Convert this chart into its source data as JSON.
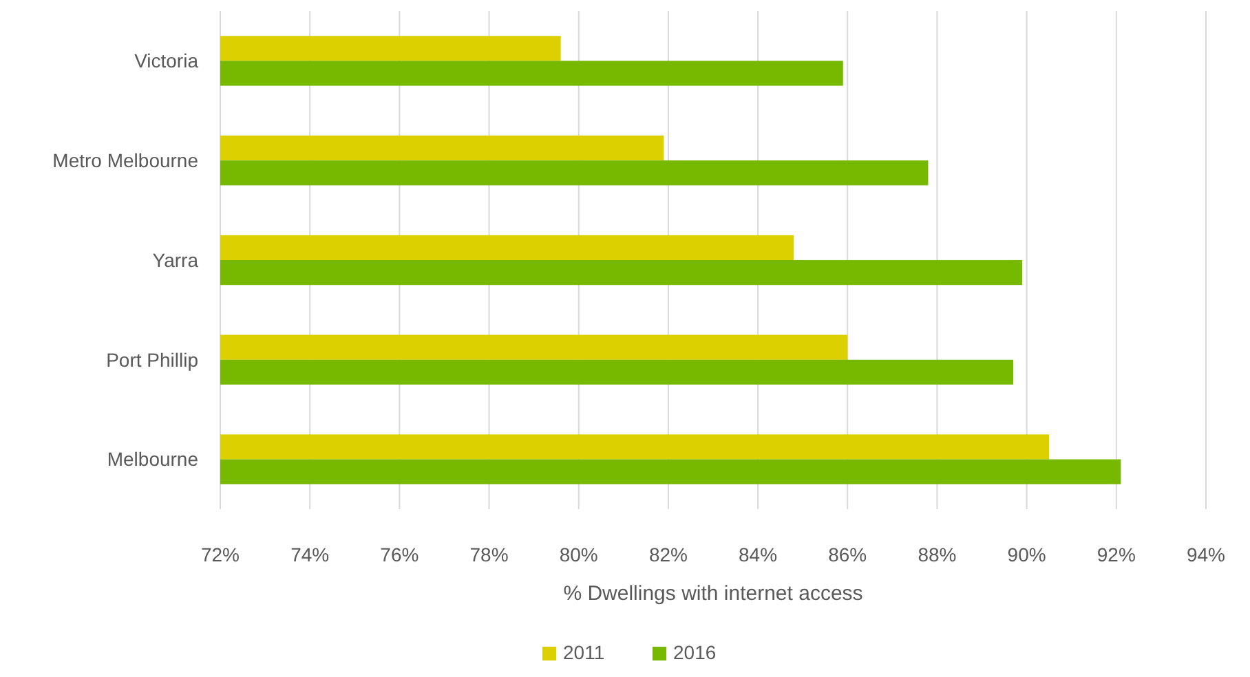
{
  "chart_data": {
    "type": "bar",
    "orientation": "horizontal",
    "xlabel": "% Dwellings with internet access",
    "categories": [
      "Victoria",
      "Metro Melbourne",
      "Yarra",
      "Port Phillip",
      "Melbourne"
    ],
    "series": [
      {
        "name": "2011",
        "color": "#ddd000",
        "values": [
          79.6,
          81.9,
          84.8,
          86.0,
          90.5
        ]
      },
      {
        "name": "2016",
        "color": "#76b900",
        "values": [
          85.9,
          87.8,
          89.9,
          89.7,
          92.1
        ]
      }
    ],
    "xlim": [
      72,
      94
    ],
    "xticks": [
      {
        "value": 72,
        "label": "72%"
      },
      {
        "value": 74,
        "label": "74%"
      },
      {
        "value": 76,
        "label": "76%"
      },
      {
        "value": 78,
        "label": "78%"
      },
      {
        "value": 80,
        "label": "80%"
      },
      {
        "value": 82,
        "label": "82%"
      },
      {
        "value": 84,
        "label": "84%"
      },
      {
        "value": 86,
        "label": "86%"
      },
      {
        "value": 88,
        "label": "88%"
      },
      {
        "value": 90,
        "label": "90%"
      },
      {
        "value": 92,
        "label": "92%"
      },
      {
        "value": 94,
        "label": "94%"
      }
    ],
    "grid": "x",
    "legend": "bottom"
  }
}
